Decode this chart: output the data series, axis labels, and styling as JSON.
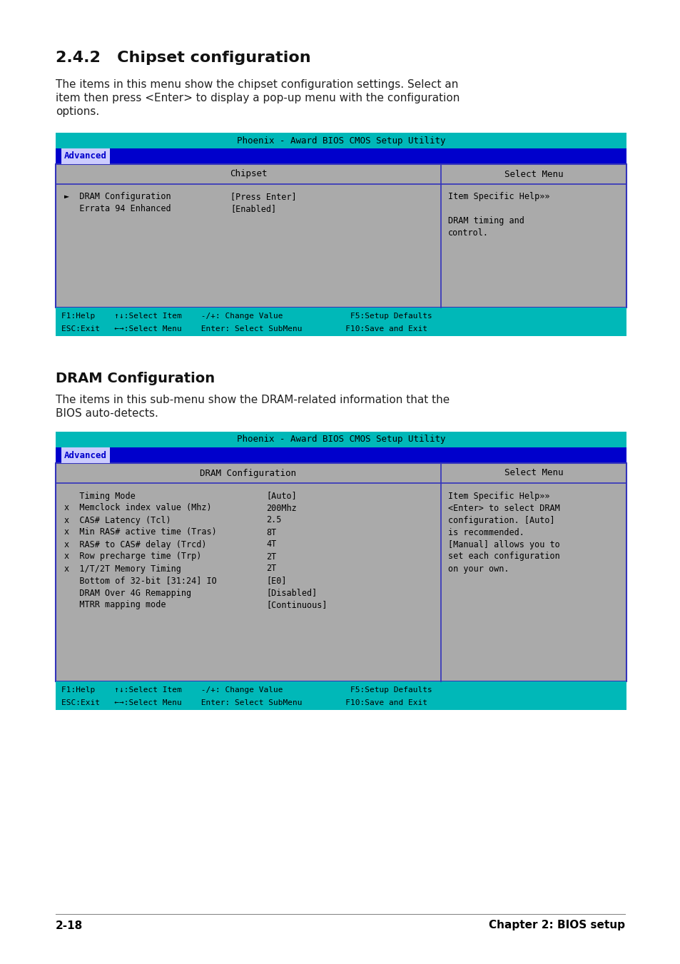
{
  "bg_color": "#ffffff",
  "section1_title": "2.4.2   Chipset configuration",
  "section1_body_lines": [
    "The items in this menu show the chipset configuration settings. Select an",
    "item then press <Enter> to display a pop-up menu with the configuration",
    "options."
  ],
  "section2_title": "DRAM Configuration",
  "section2_body_lines": [
    "The items in this sub-menu show the DRAM-related information that the",
    "BIOS auto-detects."
  ],
  "footer_left": "2-18",
  "footer_right": "Chapter 2: BIOS setup",
  "bios_title_bar_color": "#00b8b8",
  "bios_nav_bar_color": "#0000cc",
  "bios_body_color": "#aaaaaa",
  "bios_border_color": "#3333bb",
  "bios_title_text": "Phoenix - Award BIOS CMOS Setup Utility",
  "bios_nav_text": "Advanced",
  "bios_status_bar_color": "#00b8b8",
  "chipset_col1_header": "Chipset",
  "chipset_col2_header": "Select Menu",
  "dram_col1_header": "DRAM Configuration",
  "dram_col2_header": "Select Menu",
  "status_line1": "F1:Help    ↑↓:Select Item    -/+: Change Value              F5:Setup Defaults",
  "status_line2": "ESC:Exit   ←→:Select Menu    Enter: Select SubMenu         F10:Save and Exit"
}
